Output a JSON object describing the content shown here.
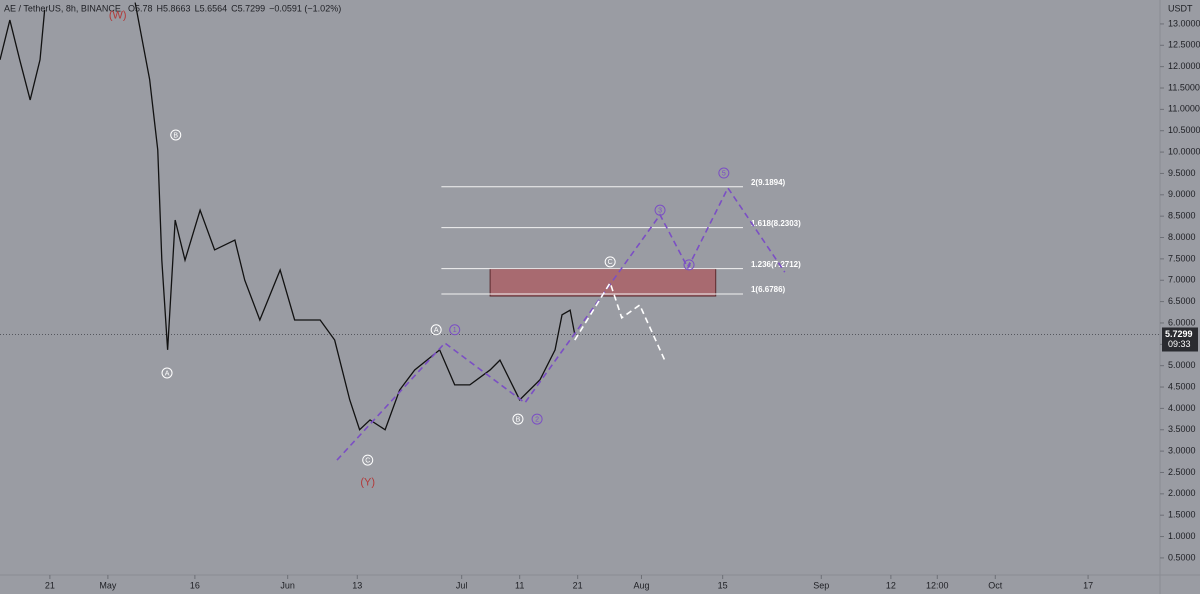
{
  "chart_data": {
    "type": "line",
    "title": "AE / TetherUS, 8h, BINANCE",
    "ohlc": [
      "O5.78",
      "H5.8663",
      "L5.6564",
      "C5.7299",
      "−0.0591 (−1.02%)"
    ],
    "currency": "USDT",
    "color": "#111111",
    "x": [
      -8.6,
      -6.9,
      -5.2,
      -3.4,
      -1.7,
      -0.9,
      0,
      13.8,
      14.7,
      17.2,
      18.6,
      19.3,
      20.3,
      21.6,
      23.3,
      25.9,
      28.4,
      31.9,
      33.6,
      36.2,
      39.7,
      42.2,
      46.6,
      49.1,
      51.7,
      53.4,
      55.2,
      57.8,
      60.3,
      62.9,
      67.2,
      69.8,
      72.4,
      75.9,
      77.6,
      81.0,
      84.5,
      87.1,
      88.3,
      89.7,
      90.5
    ],
    "values": [
      12.16,
      13.09,
      12.16,
      11.22,
      12.16,
      13.33,
      null,
      null,
      13.5,
      11.7,
      10.05,
      7.47,
      5.37,
      8.41,
      7.47,
      8.64,
      7.71,
      7.94,
      7.0,
      6.07,
      7.24,
      6.07,
      6.07,
      5.6,
      4.2,
      3.5,
      3.73,
      3.5,
      4.43,
      4.9,
      5.37,
      4.55,
      4.55,
      4.9,
      5.13,
      4.2,
      4.67,
      5.37,
      6.19,
      6.3,
      5.73
    ],
    "xlim": [
      -8.6,
      191.4
    ],
    "ylim": [
      0.1,
      13.56
    ],
    "xticks": [
      {
        "value": 0,
        "label": "21"
      },
      {
        "value": 10,
        "label": "May"
      },
      {
        "value": 25,
        "label": "16"
      },
      {
        "value": 41,
        "label": "Jun"
      },
      {
        "value": 53,
        "label": "13"
      },
      {
        "value": 71,
        "label": "Jul"
      },
      {
        "value": 81,
        "label": "11"
      },
      {
        "value": 91,
        "label": "21"
      },
      {
        "value": 102,
        "label": "Aug"
      },
      {
        "value": 116,
        "label": "15"
      },
      {
        "value": 133,
        "label": "Sep"
      },
      {
        "value": 145,
        "label": "12"
      },
      {
        "value": 153,
        "label": "12:00"
      },
      {
        "value": 163,
        "label": "Oct"
      },
      {
        "value": 179,
        "label": "17"
      }
    ],
    "yticks": [
      {
        "value": 0.5,
        "label": "0.5000"
      },
      {
        "value": 1,
        "label": "1.0000"
      },
      {
        "value": 1.5,
        "label": "1.5000"
      },
      {
        "value": 2,
        "label": "2.0000"
      },
      {
        "value": 2.5,
        "label": "2.5000"
      },
      {
        "value": 3,
        "label": "3.0000"
      },
      {
        "value": 3.5,
        "label": "3.5000"
      },
      {
        "value": 4,
        "label": "4.0000"
      },
      {
        "value": 4.5,
        "label": "4.5000"
      },
      {
        "value": 5,
        "label": "5.0000"
      },
      {
        "value": 5.5,
        "label": "5.5000"
      },
      {
        "value": 6,
        "label": "6.0000"
      },
      {
        "value": 6.5,
        "label": "6.5000"
      },
      {
        "value": 7,
        "label": "7.0000"
      },
      {
        "value": 7.5,
        "label": "7.5000"
      },
      {
        "value": 8,
        "label": "8.0000"
      },
      {
        "value": 8.5,
        "label": "8.5000"
      },
      {
        "value": 9,
        "label": "9.0000"
      },
      {
        "value": 9.5,
        "label": "9.5000"
      },
      {
        "value": 10,
        "label": "10.0000"
      },
      {
        "value": 10.5,
        "label": "10.5000"
      },
      {
        "value": 11,
        "label": "11.0000"
      },
      {
        "value": 11.5,
        "label": "11.5000"
      },
      {
        "value": 12,
        "label": "12.0000"
      },
      {
        "value": 12.5,
        "label": "12.5000"
      },
      {
        "value": 13,
        "label": "13.0000"
      }
    ],
    "last_price": {
      "value": 5.7299,
      "label": "5.7299"
    },
    "countdown": "09:33",
    "fib": [
      {
        "value": 9.1894,
        "label": "2(9.1894)"
      },
      {
        "value": 8.2303,
        "label": "1.618(8.2303)"
      },
      {
        "value": 7.2712,
        "label": "1.236(7.2712)"
      },
      {
        "value": 6.6786,
        "label": "1(6.6786)"
      }
    ],
    "fib_x": [
      67.5,
      119.5
    ],
    "zone": {
      "x": [
        75.9,
        114.8
      ],
      "y": [
        6.63,
        7.27
      ],
      "color": "#a86a70"
    },
    "waves": [
      {
        "text": "(W)",
        "x": 11.7,
        "y": 13.21,
        "color": "#b23a3a",
        "circled": false
      },
      {
        "text": "B",
        "x": 21.7,
        "y": 10.4,
        "color": "#ffffff",
        "circled": true
      },
      {
        "text": "A",
        "x": 20.2,
        "y": 4.83,
        "color": "#ffffff",
        "circled": true
      },
      {
        "text": "C",
        "x": 54.8,
        "y": 2.79,
        "color": "#ffffff",
        "circled": true
      },
      {
        "text": "(Y)",
        "x": 54.8,
        "y": 2.28,
        "color": "#b23a3a",
        "circled": false
      },
      {
        "text": "A",
        "x": 66.6,
        "y": 5.84,
        "color": "#ffffff",
        "circled": true
      },
      {
        "text": "1",
        "x": 69.8,
        "y": 5.84,
        "color": "#7b4fc4",
        "circled": true
      },
      {
        "text": "B",
        "x": 80.7,
        "y": 3.75,
        "color": "#ffffff",
        "circled": true
      },
      {
        "text": "2",
        "x": 84.0,
        "y": 3.75,
        "color": "#7b4fc4",
        "circled": true
      },
      {
        "text": "C",
        "x": 96.6,
        "y": 7.43,
        "color": "#ffffff",
        "circled": true
      },
      {
        "text": "3",
        "x": 105.2,
        "y": 8.64,
        "color": "#7b4fc4",
        "circled": true
      },
      {
        "text": "4",
        "x": 110.2,
        "y": 7.36,
        "color": "#7b4fc4",
        "circled": true
      },
      {
        "text": "5",
        "x": 116.2,
        "y": 9.51,
        "color": "#7b4fc4",
        "circled": true
      }
    ],
    "projections": [
      {
        "color": "#7b4fc4",
        "x": [
          49.5,
          68.1,
          81.9,
          105.2,
          110.0,
          116.9,
          126.7
        ],
        "y": [
          2.79,
          5.53,
          4.13,
          8.53,
          7.29,
          9.16,
          7.19
        ]
      },
      {
        "color": "#ffffff",
        "x": [
          90.5,
          96.6,
          98.6,
          101.7,
          106.0
        ],
        "y": [
          5.6,
          6.94,
          6.12,
          6.42,
          5.13
        ]
      }
    ]
  }
}
